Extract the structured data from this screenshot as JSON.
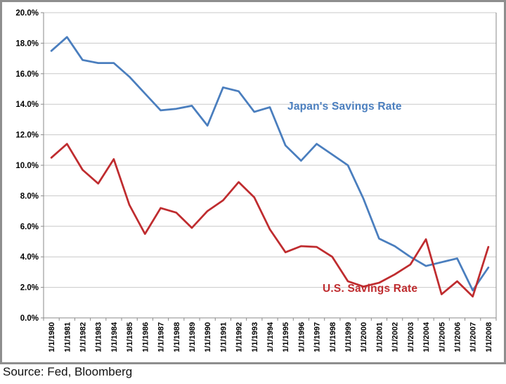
{
  "chart_data": {
    "type": "line",
    "title": "",
    "xlabel": "",
    "ylabel": "",
    "x_labels": [
      "1/1/1980",
      "1/1/1981",
      "1/1/1982",
      "1/1/1983",
      "1/1/1984",
      "1/1/1985",
      "1/1/1986",
      "1/1/1987",
      "1/1/1988",
      "1/1/1989",
      "1/1/1990",
      "1/1/1991",
      "1/1/1992",
      "1/1/1993",
      "1/1/1994",
      "1/1/1995",
      "1/1/1996",
      "1/1/1997",
      "1/1/1998",
      "1/1/1999",
      "1/1/2000",
      "1/1/2001",
      "1/1/2002",
      "1/1/2003",
      "1/1/2004",
      "1/1/2005",
      "1/1/2006",
      "1/1/2007",
      "1/1/2008"
    ],
    "ylim": [
      0,
      20
    ],
    "y_tick_step": 2,
    "y_tick_labels": [
      "0.0%",
      "2.0%",
      "4.0%",
      "6.0%",
      "8.0%",
      "10.0%",
      "12.0%",
      "14.0%",
      "16.0%",
      "18.0%",
      "20.0%"
    ],
    "grid": true,
    "legend_position": "inline-annotations",
    "series": [
      {
        "name": "Japan's Savings Rate",
        "color": "#4a7ebe",
        "values": [
          17.5,
          18.4,
          16.9,
          16.7,
          16.7,
          15.8,
          14.7,
          13.6,
          13.7,
          13.9,
          12.6,
          15.1,
          14.85,
          13.5,
          13.8,
          11.3,
          10.3,
          11.4,
          10.7,
          10.0,
          7.8,
          5.2,
          4.7,
          4.0,
          3.4,
          3.65,
          3.9,
          1.8,
          3.3
        ]
      },
      {
        "name": "U.S. Savings Rate",
        "color": "#bf2c2f",
        "values": [
          10.5,
          11.4,
          9.7,
          8.8,
          10.4,
          7.4,
          5.5,
          7.2,
          6.9,
          5.9,
          7.0,
          7.7,
          8.9,
          7.9,
          5.8,
          4.3,
          4.7,
          4.65,
          4.0,
          2.4,
          2.05,
          2.3,
          2.85,
          3.5,
          5.15,
          1.55,
          2.4,
          1.4,
          4.65
        ]
      }
    ],
    "colors": {
      "gridline": "#c8c8c8",
      "axis": "#8a8a8a",
      "tick_text": "#000000"
    }
  },
  "footer": {
    "source_text": "Source: Fed, Bloomberg"
  }
}
